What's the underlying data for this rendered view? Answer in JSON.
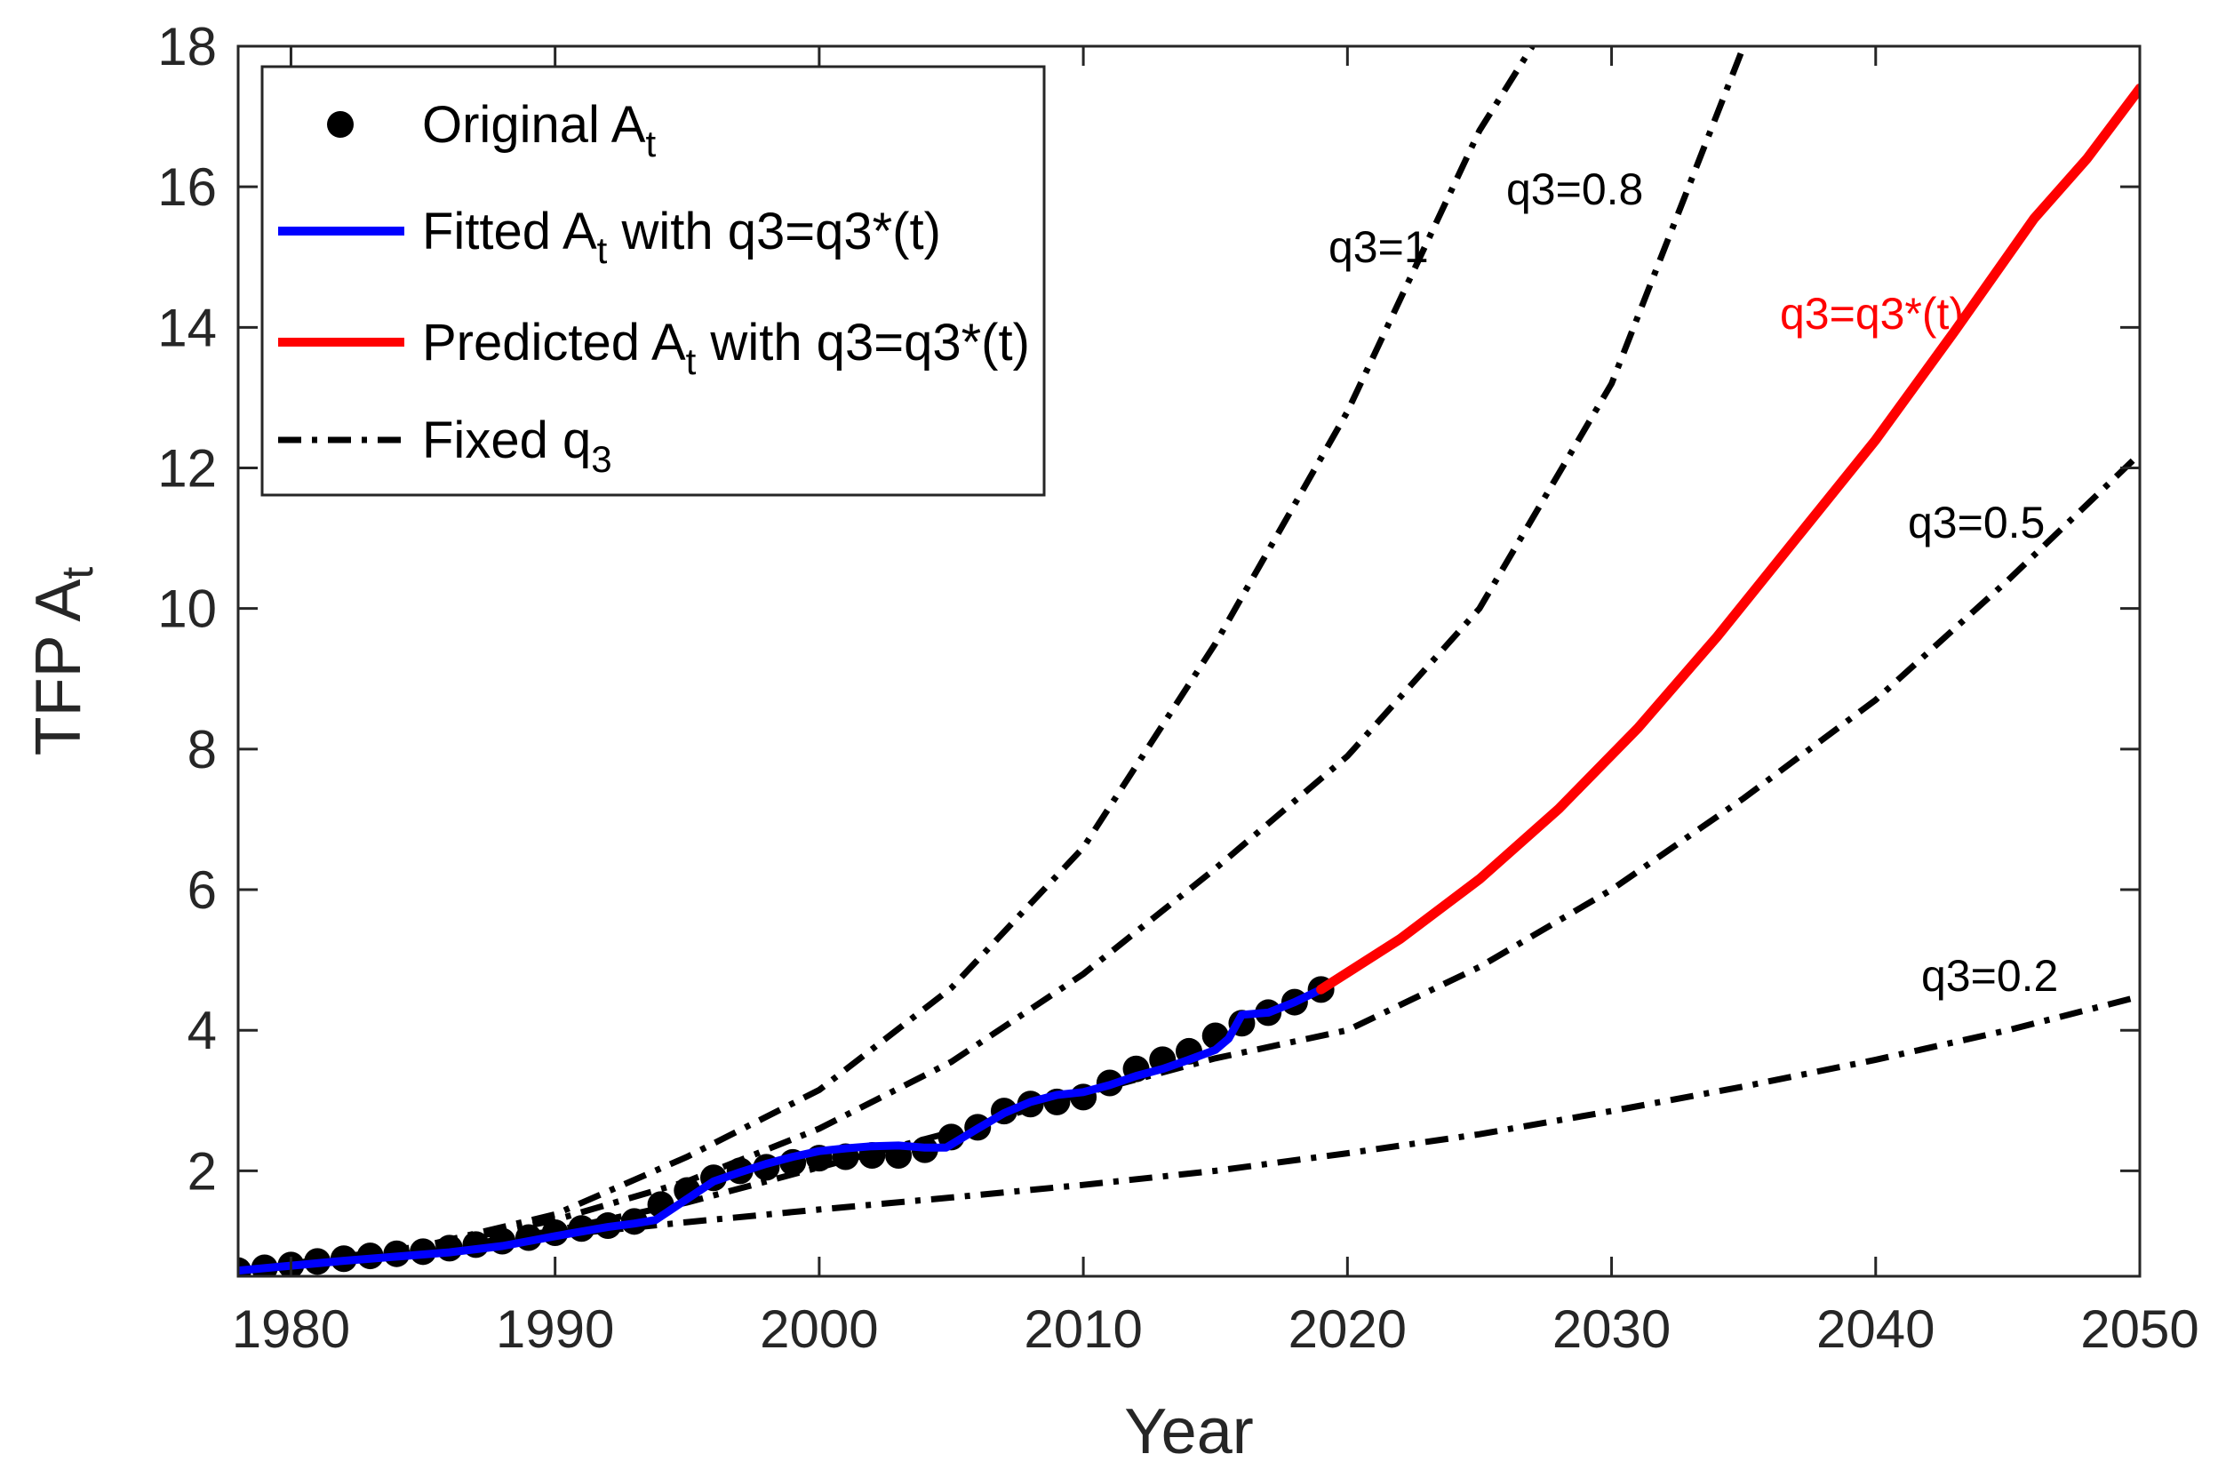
{
  "chart_data": {
    "type": "line",
    "title": "",
    "xlabel": "Year",
    "ylabel": "TFP A",
    "ylabel_subscript": "t",
    "xlim": [
      1978,
      2050
    ],
    "ylim": [
      0.5,
      18
    ],
    "xticks": [
      1980,
      1990,
      2000,
      2010,
      2020,
      2030,
      2040,
      2050
    ],
    "yticks": [
      2,
      4,
      6,
      8,
      10,
      12,
      14,
      16,
      18
    ],
    "grid": false,
    "legend_position": "top-left",
    "legend": [
      {
        "key": "original",
        "text": "Original A",
        "sub": "t",
        "tail": ""
      },
      {
        "key": "fitted",
        "text": "Fitted A",
        "sub": "t",
        "tail": " with q3=q3*(t)"
      },
      {
        "key": "predicted",
        "text": "Predicted A",
        "sub": "t",
        "tail": " with q3=q3*(t)"
      },
      {
        "key": "fixed",
        "text": "Fixed q",
        "sub": "3",
        "tail": ""
      }
    ],
    "colors": {
      "original": "#000000",
      "fitted": "#0000ff",
      "predicted": "#ff0000",
      "fixed": "#000000"
    },
    "series": [
      {
        "name": "Original A_t",
        "key": "original",
        "style": "markers",
        "x": [
          1978,
          1979,
          1980,
          1981,
          1982,
          1983,
          1984,
          1985,
          1986,
          1987,
          1988,
          1989,
          1990,
          1991,
          1992,
          1993,
          1994,
          1995,
          1996,
          1997,
          1998,
          1999,
          2000,
          2001,
          2002,
          2003,
          2004,
          2005,
          2006,
          2007,
          2008,
          2009,
          2010,
          2011,
          2012,
          2013,
          2014,
          2015,
          2016,
          2017,
          2018,
          2019
        ],
        "y": [
          0.58,
          0.62,
          0.66,
          0.71,
          0.75,
          0.79,
          0.82,
          0.85,
          0.9,
          0.95,
          1.0,
          1.05,
          1.12,
          1.18,
          1.22,
          1.28,
          1.52,
          1.72,
          1.9,
          2.0,
          2.05,
          2.12,
          2.18,
          2.2,
          2.22,
          2.22,
          2.3,
          2.48,
          2.62,
          2.85,
          2.95,
          2.98,
          3.05,
          3.25,
          3.45,
          3.58,
          3.7,
          3.92,
          4.1,
          4.25,
          4.4,
          4.58
        ]
      },
      {
        "name": "Fitted A_t with q3=q3*(t)",
        "key": "fitted",
        "style": "solid",
        "x": [
          1978,
          1980,
          1982,
          1984,
          1986,
          1988,
          1990,
          1992,
          1993,
          1993.8,
          1995,
          1996,
          1997,
          1998,
          1999,
          2000,
          2001,
          2002,
          2003,
          2004,
          2004.8,
          2006,
          2007,
          2008,
          2009,
          2010,
          2011,
          2012,
          2013,
          2014,
          2015,
          2015.5,
          2016,
          2017,
          2018,
          2019
        ],
        "y": [
          0.58,
          0.65,
          0.72,
          0.78,
          0.84,
          0.93,
          1.07,
          1.2,
          1.25,
          1.3,
          1.6,
          1.85,
          1.98,
          2.1,
          2.2,
          2.28,
          2.32,
          2.35,
          2.36,
          2.33,
          2.33,
          2.6,
          2.82,
          2.98,
          3.08,
          3.12,
          3.22,
          3.35,
          3.45,
          3.58,
          3.72,
          3.88,
          4.22,
          4.25,
          4.4,
          4.58
        ]
      },
      {
        "name": "Predicted A_t with q3=q3*(t)",
        "key": "predicted",
        "style": "solid",
        "x": [
          2019,
          2022,
          2025,
          2028,
          2031,
          2034,
          2037,
          2040,
          2043,
          2046,
          2048,
          2050
        ],
        "y": [
          4.58,
          5.3,
          6.15,
          7.15,
          8.3,
          9.6,
          11.0,
          12.4,
          13.95,
          15.55,
          16.4,
          17.4
        ]
      },
      {
        "name": "q3=1",
        "key": "fixed",
        "style": "dashdot",
        "label": "q3=1",
        "x": [
          1978,
          1985,
          1990,
          1995,
          2000,
          2005,
          2010,
          2015,
          2020,
          2025,
          2027
        ],
        "y": [
          0.58,
          0.93,
          1.38,
          2.2,
          3.15,
          4.6,
          6.6,
          9.5,
          12.8,
          16.8,
          18.0
        ]
      },
      {
        "name": "q3=0.8",
        "key": "fixed",
        "style": "dashdot",
        "label": "q3=0.8",
        "x": [
          1978,
          1985,
          1990,
          1995,
          2000,
          2005,
          2010,
          2015,
          2020,
          2025,
          2030,
          2035
        ],
        "y": [
          0.58,
          0.9,
          1.3,
          1.85,
          2.6,
          3.55,
          4.8,
          6.3,
          7.9,
          10.0,
          13.2,
          18.0
        ]
      },
      {
        "name": "q3=0.5",
        "key": "fixed",
        "style": "dashdot",
        "label": "q3=0.5",
        "x": [
          1978,
          1985,
          1990,
          1995,
          2000,
          2005,
          2010,
          2015,
          2020,
          2025,
          2030,
          2035,
          2040,
          2045,
          2050
        ],
        "y": [
          0.58,
          0.85,
          1.15,
          1.55,
          2.05,
          2.55,
          3.1,
          3.6,
          4.0,
          4.9,
          6.0,
          7.3,
          8.7,
          10.4,
          12.2
        ]
      },
      {
        "name": "q3=0.2",
        "key": "fixed",
        "style": "dashdot",
        "label": "q3=0.2",
        "x": [
          1978,
          1985,
          1990,
          1995,
          2000,
          2005,
          2010,
          2015,
          2020,
          2025,
          2030,
          2035,
          2040,
          2045,
          2050
        ],
        "y": [
          0.58,
          0.85,
          1.08,
          1.27,
          1.45,
          1.62,
          1.8,
          2.0,
          2.25,
          2.52,
          2.85,
          3.2,
          3.58,
          4.0,
          4.48
        ]
      }
    ],
    "annotations": [
      {
        "text": "q3=1",
        "color": "#000000"
      },
      {
        "text": "q3=0.8",
        "color": "#000000"
      },
      {
        "text": "q3=q3*(t)",
        "color": "#ff0000"
      },
      {
        "text": "q3=0.5",
        "color": "#000000"
      },
      {
        "text": "q3=0.2",
        "color": "#000000"
      }
    ]
  }
}
